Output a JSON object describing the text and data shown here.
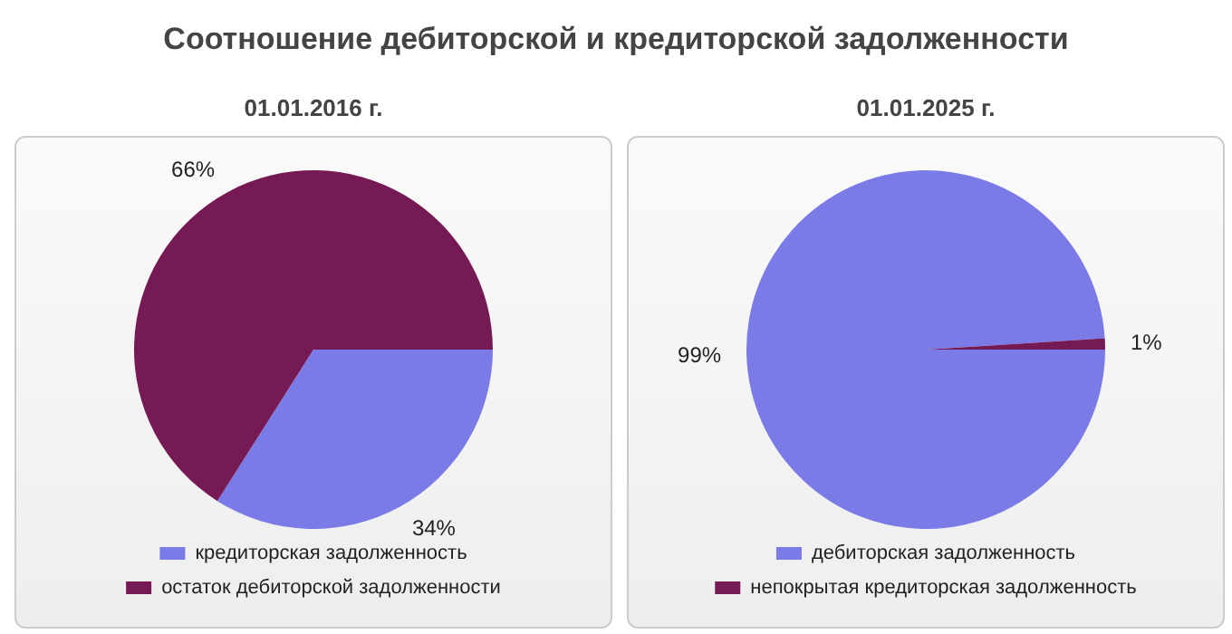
{
  "chart_data": [
    {
      "type": "pie",
      "title": "Соотношение дебиторской и кредиторской задолженности",
      "subtitle": "01.01.2016 г.",
      "categories": [
        "кредиторская задолженность",
        "остаток дебиторской задолженности"
      ],
      "values": [
        34,
        66
      ],
      "value_labels": [
        "34%",
        "66%"
      ],
      "colors": [
        "#7b7be8",
        "#761a55"
      ],
      "legend": "bottom"
    },
    {
      "type": "pie",
      "subtitle": "01.01.2025 г.",
      "categories": [
        "дебиторская задолженность",
        "непокрытая кредиторская задолженность"
      ],
      "values": [
        99,
        1
      ],
      "value_labels": [
        "99%",
        "1%"
      ],
      "colors": [
        "#7b7be8",
        "#761a55"
      ],
      "legend": "bottom"
    }
  ]
}
